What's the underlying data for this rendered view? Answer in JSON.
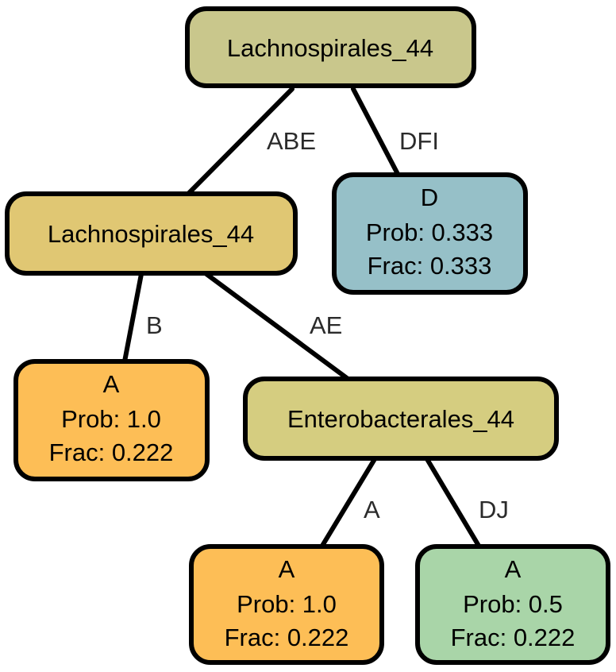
{
  "nodes": {
    "root": {
      "lines": [
        "Lachnospirales_44"
      ],
      "color": "#c9c78c"
    },
    "left": {
      "lines": [
        "Lachnospirales_44"
      ],
      "color": "#e0c773"
    },
    "d": {
      "lines": [
        "D",
        "Prob: 0.333",
        "Frac: 0.333"
      ],
      "color": "#96c0c8"
    },
    "a1": {
      "lines": [
        "A",
        "Prob: 1.0",
        "Frac: 0.222"
      ],
      "color": "#fdbe56"
    },
    "entero": {
      "lines": [
        "Enterobacterales_44"
      ],
      "color": "#d5cd80"
    },
    "a2": {
      "lines": [
        "A",
        "Prob: 1.0",
        "Frac: 0.222"
      ],
      "color": "#fdbe56"
    },
    "a3": {
      "lines": [
        "A",
        "Prob: 0.5",
        "Frac: 0.222"
      ],
      "color": "#a9d5a8"
    }
  },
  "edges": {
    "root_left": "ABE",
    "root_d": "DFI",
    "left_a1": "B",
    "left_entero": "AE",
    "entero_a2": "A",
    "entero_a3": "DJ"
  }
}
